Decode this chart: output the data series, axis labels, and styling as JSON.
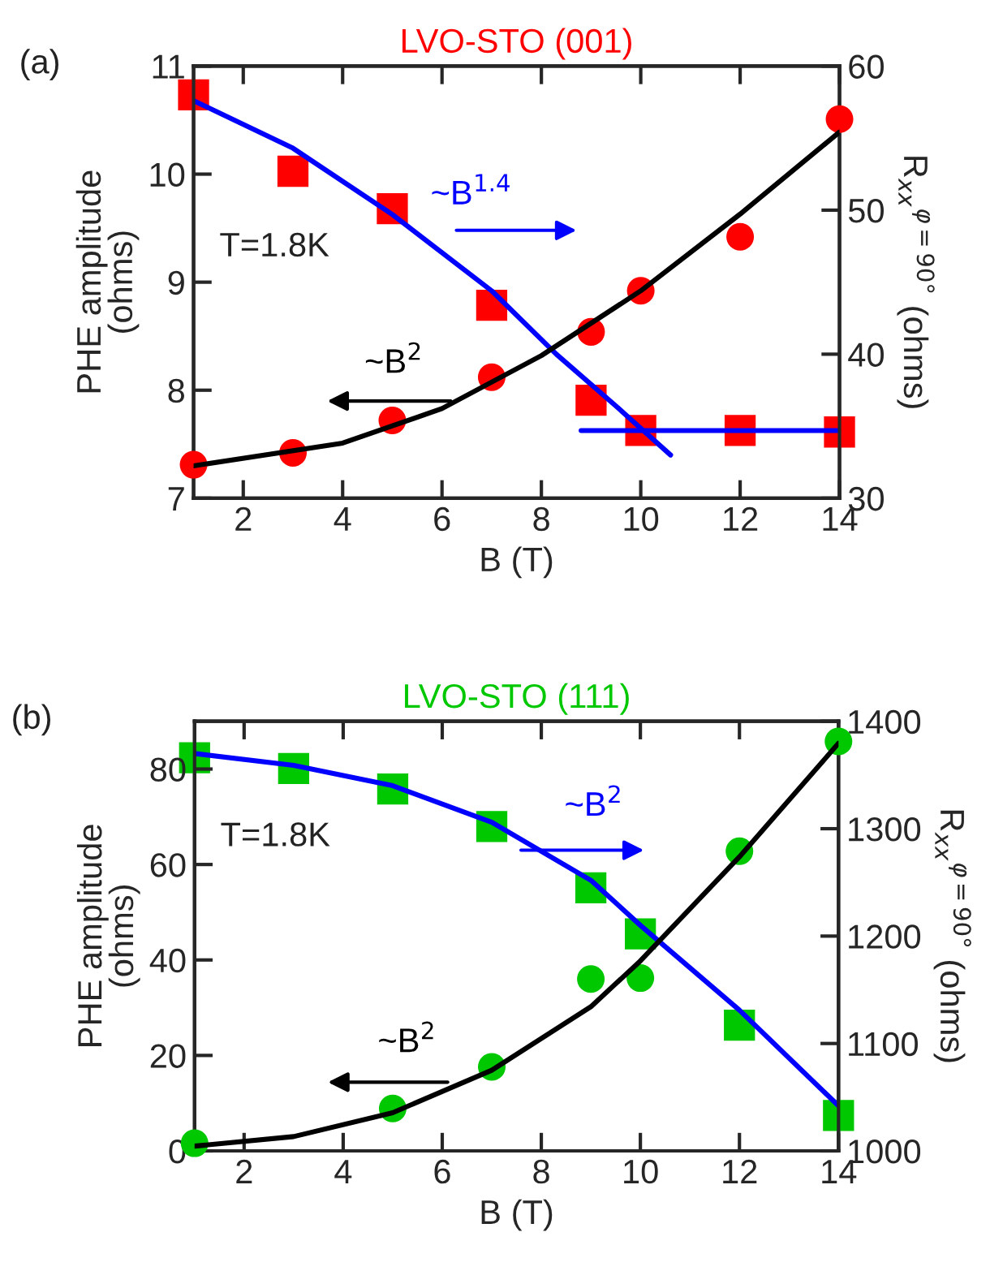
{
  "chart_data": [
    {
      "type": "scatter",
      "title": "LVO-STO (001)",
      "xlabel": "B (T)",
      "ylabel": "PHE amplitude\n(ohms)",
      "y2label": "R$_{xx}$$^{φ=90°}$ (ohms)",
      "xlim": [
        1,
        14
      ],
      "xticks": [
        2,
        4,
        6,
        8,
        10,
        12,
        14
      ],
      "ylim": [
        7,
        11
      ],
      "yticks": [
        7,
        8,
        9,
        10,
        11
      ],
      "y2lim": [
        30,
        60
      ],
      "y2ticks": [
        30,
        40,
        50,
        60
      ],
      "annotations": [
        "(a)",
        "T=1.8K",
        "~B$^{1.4}$",
        "~B$^{2}$"
      ],
      "series": [
        {
          "type": "scatter",
          "marker": "circle",
          "color": "#ff0000",
          "x": [
            1,
            3,
            5,
            7,
            9,
            10,
            12,
            14
          ],
          "values": [
            7.31,
            7.42,
            7.72,
            8.12,
            8.54,
            8.92,
            9.42,
            10.51
          ]
        },
        {
          "type": "scatter",
          "marker": "square",
          "axis": "y2",
          "color": "#ff0000",
          "x": [
            1,
            3,
            5,
            7,
            9,
            10,
            12,
            14
          ],
          "values": [
            58.0,
            52.7,
            50.1,
            43.4,
            36.8,
            34.7,
            34.7,
            34.6
          ]
        },
        {
          "type": "line",
          "color": "#000000",
          "x": [
            1,
            4,
            6,
            8,
            10,
            12,
            14
          ],
          "values": [
            7.3,
            7.51,
            7.83,
            8.32,
            8.92,
            9.63,
            10.39
          ]
        },
        {
          "type": "line",
          "axis": "y2",
          "color": "#0000ff",
          "x": [
            1,
            3,
            5,
            7,
            8.3,
            9.5,
            10.6
          ],
          "values": [
            57.6,
            54.3,
            49.7,
            44.4,
            40.0,
            36.4,
            33.0
          ]
        },
        {
          "type": "line",
          "axis": "y2",
          "color": "#0000ff",
          "x": [
            8.8,
            14
          ],
          "values": [
            34.7,
            34.7
          ]
        }
      ]
    },
    {
      "type": "scatter",
      "title": "LVO-STO (111)",
      "xlabel": "B (T)",
      "ylabel": "PHE amplitude\n(ohms)",
      "y2label": "R$_{xx}$$^{φ=90°}$ (ohms)",
      "xlim": [
        1,
        14
      ],
      "xticks": [
        2,
        4,
        6,
        8,
        10,
        12,
        14
      ],
      "ylim": [
        0,
        90
      ],
      "yticks": [
        0,
        20,
        40,
        60,
        80
      ],
      "y2lim": [
        1000,
        1400
      ],
      "y2ticks": [
        1000,
        1100,
        1200,
        1300,
        1400
      ],
      "annotations": [
        "(b)",
        "T=1.8K",
        "~B$^{2}$",
        "~B$^{2}$"
      ],
      "series": [
        {
          "type": "scatter",
          "marker": "circle",
          "color": "#00c800",
          "x": [
            1,
            5,
            7,
            9,
            10,
            12,
            14
          ],
          "values": [
            1.6,
            8.9,
            17.6,
            36.0,
            36.2,
            62.8,
            85.8
          ]
        },
        {
          "type": "scatter",
          "marker": "square",
          "axis": "y2",
          "color": "#00c800",
          "x": [
            1,
            3,
            5,
            7,
            9,
            10,
            12,
            14
          ],
          "values": [
            1366,
            1356,
            1337,
            1302,
            1245,
            1202,
            1117,
            1033
          ]
        },
        {
          "type": "line",
          "color": "#000000",
          "x": [
            1,
            3,
            5,
            7,
            9,
            10,
            12,
            14
          ],
          "values": [
            1.0,
            3.0,
            8.0,
            16.9,
            30.2,
            39.8,
            61.6,
            85.4
          ]
        },
        {
          "type": "line",
          "axis": "y2",
          "color": "#0000ff",
          "x": [
            1,
            3,
            5,
            7,
            9,
            10,
            12,
            14
          ],
          "values": [
            1370,
            1359,
            1340,
            1306,
            1252,
            1210,
            1131,
            1042
          ]
        }
      ]
    }
  ]
}
